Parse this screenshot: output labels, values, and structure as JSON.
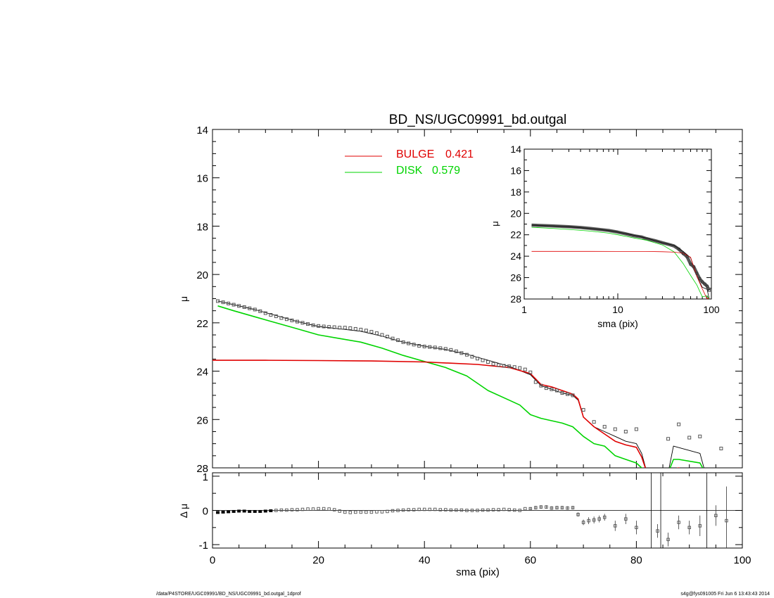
{
  "chart_data": {
    "type": "line",
    "title": "BD_NS/UGC09991_bd.outgal",
    "xlabel": "sma (pix)",
    "ylabel": "μ",
    "xlim": [
      0,
      100
    ],
    "ylim": [
      28,
      14
    ],
    "xticks": [
      "0",
      "20",
      "40",
      "60",
      "80",
      "100"
    ],
    "yticks": [
      "14",
      "16",
      "18",
      "20",
      "22",
      "24",
      "26",
      "28"
    ],
    "colors": {
      "bulge": "#e00000",
      "disk": "#00d400",
      "model": "#000000",
      "data": "#555555"
    },
    "legend": [
      {
        "label": "BULGE",
        "value": "0.421"
      },
      {
        "label": "DISK",
        "value": "0.579"
      }
    ],
    "data_points": {
      "x": [
        1,
        2,
        3,
        4,
        5,
        6,
        7,
        8,
        9,
        10,
        11,
        12,
        13,
        14,
        15,
        16,
        17,
        18,
        19,
        20,
        21,
        22,
        23,
        24,
        25,
        26,
        27,
        28,
        29,
        30,
        31,
        32,
        33,
        34,
        35,
        36,
        37,
        38,
        39,
        40,
        41,
        42,
        43,
        44,
        45,
        46,
        47,
        48,
        49,
        50,
        51,
        52,
        53,
        54,
        55,
        56,
        57,
        58,
        59,
        60,
        61,
        62,
        63,
        64,
        65,
        66,
        67,
        68,
        70,
        72,
        74,
        76,
        78,
        80,
        86,
        88,
        90,
        92,
        96
      ],
      "y": [
        21.1,
        21.15,
        21.2,
        21.25,
        21.3,
        21.35,
        21.4,
        21.45,
        21.52,
        21.6,
        21.67,
        21.73,
        21.8,
        21.85,
        21.9,
        21.95,
        22.0,
        22.05,
        22.1,
        22.13,
        22.15,
        22.17,
        22.18,
        22.2,
        22.2,
        22.22,
        22.25,
        22.28,
        22.32,
        22.37,
        22.43,
        22.5,
        22.57,
        22.65,
        22.72,
        22.8,
        22.85,
        22.9,
        22.95,
        22.98,
        23.0,
        23.02,
        23.05,
        23.08,
        23.12,
        23.18,
        23.25,
        23.32,
        23.4,
        23.48,
        23.55,
        23.62,
        23.7,
        23.75,
        23.78,
        23.8,
        23.83,
        23.87,
        23.93,
        24.05,
        24.45,
        24.6,
        24.7,
        24.75,
        24.8,
        24.9,
        24.95,
        25.0,
        25.6,
        26.1,
        26.3,
        26.4,
        26.5,
        26.4,
        26.8,
        26.2,
        26.75,
        26.7,
        27.2
      ]
    },
    "model_total": {
      "x": [
        1,
        4,
        8,
        12,
        16,
        20,
        24,
        28,
        32,
        36,
        40,
        44,
        48,
        52,
        56,
        60,
        62,
        64,
        66,
        68,
        69,
        70,
        72,
        74,
        76,
        78,
        80,
        81,
        82,
        86,
        87,
        92,
        93
      ],
      "y": [
        21.1,
        21.25,
        21.45,
        21.7,
        21.95,
        22.15,
        22.25,
        22.35,
        22.55,
        22.8,
        22.97,
        23.1,
        23.3,
        23.55,
        23.8,
        24.15,
        24.6,
        24.75,
        24.9,
        25.0,
        25.2,
        25.9,
        26.3,
        26.5,
        26.7,
        26.9,
        27.0,
        27.4,
        28.2,
        28.2,
        27.1,
        27.4,
        28.2
      ]
    },
    "bulge": {
      "x": [
        0,
        10,
        20,
        30,
        40,
        50,
        56,
        60,
        62,
        64,
        66,
        68,
        69,
        70,
        72,
        74,
        76,
        78,
        80,
        81,
        82,
        86,
        87,
        88,
        89,
        93,
        94,
        95
      ],
      "y": [
        23.55,
        23.55,
        23.56,
        23.58,
        23.62,
        23.72,
        23.85,
        24.1,
        24.55,
        24.65,
        24.8,
        24.95,
        25.15,
        25.9,
        26.3,
        26.6,
        26.9,
        27.05,
        27.15,
        27.55,
        28.2,
        28.2,
        28.05,
        28.0,
        28.2,
        28.2,
        28.05,
        28.2
      ]
    },
    "disk": {
      "x": [
        1,
        4,
        8,
        12,
        16,
        20,
        24,
        28,
        32,
        36,
        40,
        44,
        48,
        52,
        56,
        58,
        60,
        62,
        64,
        66,
        68,
        70,
        72,
        74,
        76,
        78,
        80,
        81,
        82,
        86,
        87,
        88,
        92,
        93
      ],
      "y": [
        21.3,
        21.5,
        21.75,
        22.0,
        22.25,
        22.5,
        22.65,
        22.8,
        23.05,
        23.35,
        23.6,
        23.85,
        24.2,
        24.8,
        25.2,
        25.4,
        25.8,
        25.95,
        26.05,
        26.15,
        26.3,
        26.7,
        27.0,
        27.1,
        27.5,
        27.65,
        27.8,
        28.0,
        28.2,
        28.2,
        27.65,
        27.65,
        27.8,
        28.2
      ]
    },
    "inset": {
      "xlabel": "sma (pix)",
      "ylabel": "μ",
      "xscale": "log",
      "xlim": [
        1,
        100
      ],
      "ylim": [
        28,
        14
      ],
      "xticks": [
        "1",
        "10",
        "100"
      ],
      "yticks": [
        "14",
        "16",
        "18",
        "20",
        "22",
        "24",
        "26",
        "28"
      ],
      "data_points": {
        "x": [
          1.2,
          1.5,
          2,
          3,
          4,
          5,
          6,
          8,
          10,
          12,
          15,
          18,
          20,
          25,
          30,
          35,
          40,
          45,
          50,
          55,
          60,
          65,
          70,
          75,
          80,
          85,
          90,
          95
        ],
        "y": [
          21.1,
          21.13,
          21.17,
          21.25,
          21.32,
          21.4,
          21.47,
          21.6,
          21.75,
          21.9,
          22.1,
          22.2,
          22.35,
          22.55,
          22.75,
          22.9,
          23.05,
          23.35,
          23.75,
          24.05,
          24.75,
          25.0,
          25.6,
          26.1,
          26.4,
          26.6,
          26.8,
          27.2
        ]
      },
      "model_total": {
        "x": [
          1.2,
          2,
          3,
          5,
          8,
          10,
          15,
          20,
          30,
          40,
          50,
          60,
          70,
          80,
          90,
          95
        ],
        "y": [
          21.1,
          21.17,
          21.25,
          21.4,
          21.6,
          21.75,
          22.05,
          22.3,
          22.75,
          23.0,
          23.55,
          24.15,
          25.9,
          26.9,
          27.1,
          28.0
        ]
      },
      "bulge": {
        "x": [
          1.2,
          5,
          10,
          20,
          30,
          40,
          50,
          60,
          70,
          80,
          90,
          95
        ],
        "y": [
          23.55,
          23.55,
          23.56,
          23.56,
          23.58,
          23.62,
          23.72,
          24.1,
          25.9,
          27.05,
          28.0,
          27.9
        ]
      },
      "disk": {
        "x": [
          1.2,
          2,
          3,
          5,
          8,
          10,
          15,
          20,
          30,
          40,
          50,
          60,
          70,
          80,
          90,
          95
        ],
        "y": [
          21.3,
          21.4,
          21.5,
          21.65,
          21.85,
          22.0,
          22.3,
          22.5,
          22.95,
          23.6,
          24.7,
          25.8,
          26.7,
          27.8,
          27.7,
          28.0
        ]
      }
    },
    "residuals": {
      "ylabel": "Δ μ",
      "ylim": [
        -1.1,
        1.1
      ],
      "yticks": [
        "1",
        "0",
        "-1"
      ],
      "x": [
        1,
        2,
        3,
        4,
        5,
        6,
        7,
        8,
        9,
        10,
        11,
        12,
        13,
        14,
        15,
        16,
        17,
        18,
        19,
        20,
        21,
        22,
        23,
        24,
        25,
        26,
        27,
        28,
        29,
        30,
        31,
        32,
        33,
        34,
        35,
        36,
        37,
        38,
        39,
        40,
        41,
        42,
        43,
        44,
        45,
        46,
        47,
        48,
        49,
        50,
        51,
        52,
        53,
        54,
        55,
        56,
        57,
        58,
        59,
        60,
        61,
        62,
        63,
        64,
        65,
        66,
        67,
        68,
        69,
        70,
        71,
        72,
        73,
        74,
        76,
        78,
        80,
        84,
        86,
        88,
        90,
        92,
        95,
        97
      ],
      "y": [
        -0.06,
        -0.05,
        -0.04,
        -0.03,
        -0.02,
        -0.02,
        -0.03,
        -0.03,
        -0.03,
        -0.02,
        -0.01,
        0.0,
        0.01,
        0.01,
        0.02,
        0.02,
        0.03,
        0.04,
        0.04,
        0.05,
        0.05,
        0.04,
        0.02,
        -0.02,
        -0.05,
        -0.06,
        -0.05,
        -0.05,
        -0.05,
        -0.05,
        -0.04,
        -0.04,
        -0.03,
        -0.01,
        0.0,
        0.01,
        0.02,
        0.02,
        0.03,
        0.03,
        0.03,
        0.03,
        0.02,
        0.02,
        0.01,
        0.01,
        0.01,
        0.0,
        0.0,
        0.0,
        0.01,
        0.01,
        0.02,
        0.02,
        0.03,
        0.02,
        0.01,
        0.0,
        0.05,
        0.05,
        0.08,
        0.1,
        0.1,
        0.07,
        0.08,
        0.08,
        0.07,
        0.08,
        -0.12,
        -0.35,
        -0.3,
        -0.28,
        -0.25,
        -0.2,
        -0.45,
        -0.25,
        -0.5,
        -0.6,
        -0.85,
        -0.35,
        -0.5,
        -0.45,
        -0.15,
        -0.3
      ],
      "err": [
        0.02,
        0.02,
        0.02,
        0.02,
        0.02,
        0.02,
        0.02,
        0.02,
        0.02,
        0.02,
        0.02,
        0.02,
        0.02,
        0.02,
        0.02,
        0.02,
        0.02,
        0.02,
        0.02,
        0.02,
        0.02,
        0.02,
        0.02,
        0.02,
        0.02,
        0.02,
        0.02,
        0.02,
        0.02,
        0.02,
        0.02,
        0.02,
        0.02,
        0.02,
        0.02,
        0.02,
        0.02,
        0.02,
        0.02,
        0.02,
        0.02,
        0.02,
        0.02,
        0.02,
        0.02,
        0.02,
        0.02,
        0.02,
        0.02,
        0.02,
        0.02,
        0.02,
        0.02,
        0.02,
        0.02,
        0.02,
        0.02,
        0.02,
        0.03,
        0.04,
        0.05,
        0.05,
        0.05,
        0.05,
        0.05,
        0.05,
        0.05,
        0.05,
        0.06,
        0.08,
        0.1,
        0.1,
        0.1,
        0.1,
        0.15,
        0.15,
        0.2,
        0.2,
        0.2,
        0.2,
        0.2,
        0.3,
        0.3,
        1.0
      ]
    },
    "residual_spikes_x": [
      82.8,
      84.6,
      93.3
    ]
  },
  "footer": {
    "left": "/data/P4STORE/UGC09991/BD_NS/UGC09991_bd.outgal_1dprof",
    "right": "s4g@fys091005  Fri Jun  6 13:43:43 2014"
  }
}
